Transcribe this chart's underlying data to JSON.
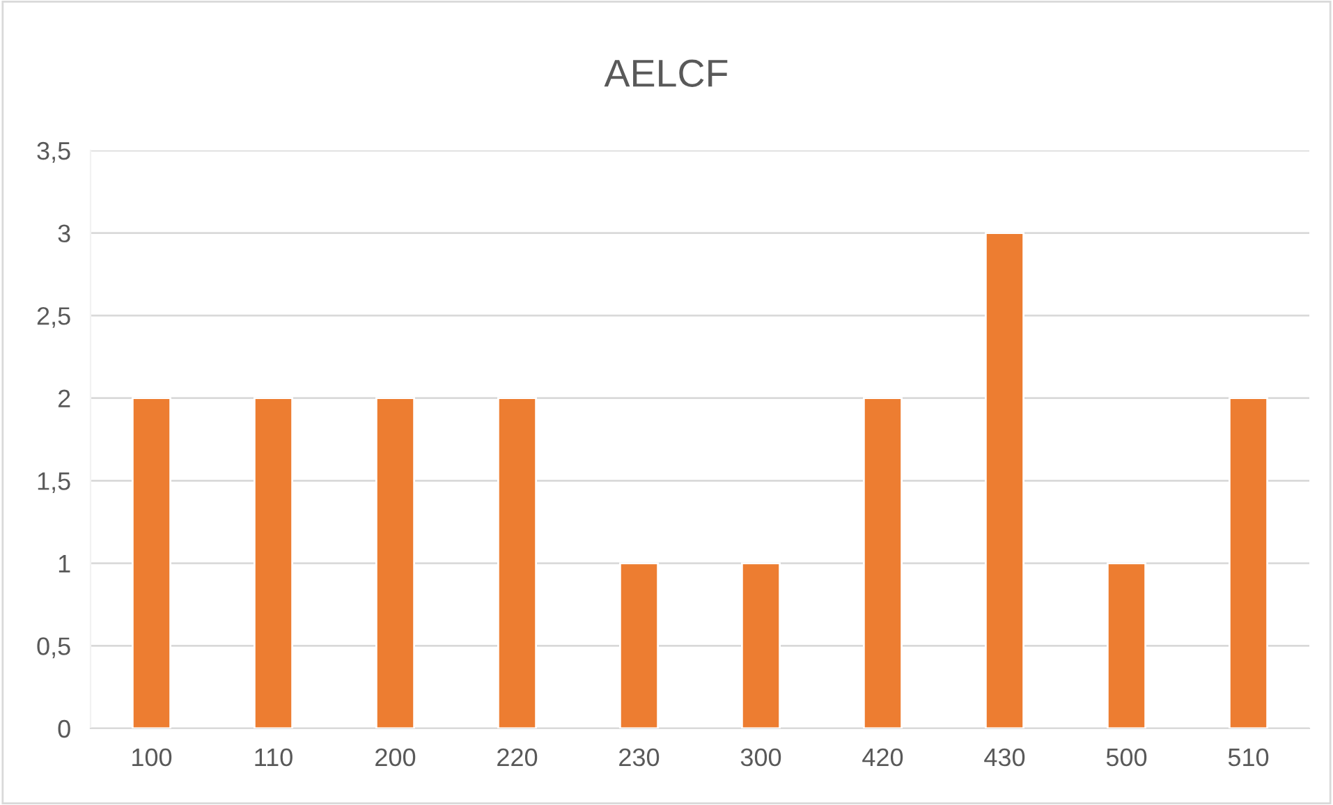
{
  "chart_data": {
    "type": "bar",
    "title": "AELCF",
    "categories": [
      "100",
      "110",
      "200",
      "220",
      "230",
      "300",
      "420",
      "430",
      "500",
      "510"
    ],
    "values": [
      2,
      2,
      2,
      2,
      1,
      1,
      2,
      3,
      1,
      2
    ],
    "color": "#ed7d31",
    "ylim": [
      0,
      3.5
    ],
    "yticks": [
      0,
      {
        "value": 0.5,
        "label": "0,5"
      },
      1,
      {
        "value": 1.5,
        "label": "1,5"
      },
      2,
      {
        "value": 2.5,
        "label": "2,5"
      },
      3,
      {
        "value": 3.5,
        "label": "3,5"
      }
    ],
    "grid": "y"
  }
}
